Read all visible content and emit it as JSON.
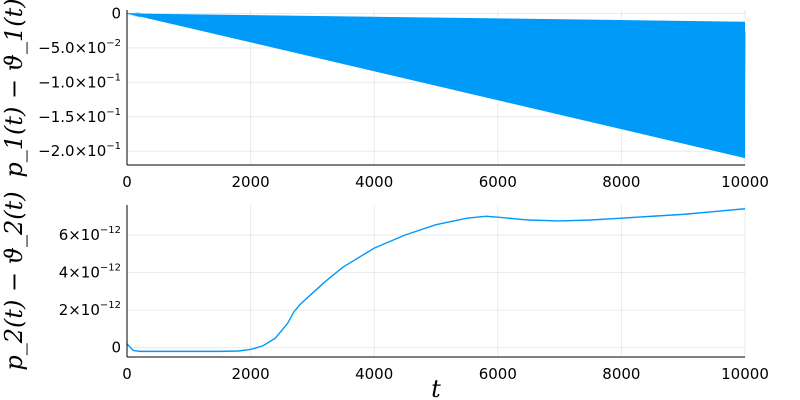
{
  "chart_data": [
    {
      "type": "line",
      "ylabel": "p_1(t) − ϑ_1(t)",
      "xlabel": "",
      "xlim": [
        0,
        10000
      ],
      "ylim": [
        -0.22,
        0.005
      ],
      "x_ticks": [
        0,
        2000,
        4000,
        6000,
        8000,
        10000
      ],
      "x_tick_labels": [
        "0",
        "2000",
        "4000",
        "6000",
        "8000",
        "10000"
      ],
      "y_ticks": [
        0,
        -0.05,
        -0.1,
        -0.15,
        -0.2
      ],
      "y_tick_labels": [
        {
          "mant": "0",
          "exp": ""
        },
        {
          "mant": "−5.0×10",
          "exp": "−2"
        },
        {
          "mant": "−1.0×10",
          "exp": "−1"
        },
        {
          "mant": "−1.5×10",
          "exp": "−1"
        },
        {
          "mant": "−2.0×10",
          "exp": "−1"
        }
      ],
      "grid": true,
      "color": "#009af9",
      "series": [
        {
          "kind": "oscillation-band",
          "x": [
            0,
            10000
          ],
          "upper": [
            0,
            -0.012
          ],
          "lower": [
            0,
            -0.21
          ]
        }
      ]
    },
    {
      "type": "line",
      "ylabel": "p_2(t) − ϑ_2(t)",
      "xlabel": "t",
      "xlim": [
        0,
        10000
      ],
      "ylim": [
        -5e-13,
        7.6e-12
      ],
      "x_ticks": [
        0,
        2000,
        4000,
        6000,
        8000,
        10000
      ],
      "x_tick_labels": [
        "0",
        "2000",
        "4000",
        "6000",
        "8000",
        "10000"
      ],
      "y_ticks": [
        0,
        2e-12,
        4e-12,
        6e-12
      ],
      "y_tick_labels": [
        {
          "mant": "0",
          "exp": ""
        },
        {
          "mant": "2×10",
          "exp": "−12"
        },
        {
          "mant": "4×10",
          "exp": "−12"
        },
        {
          "mant": "6×10",
          "exp": "−12"
        }
      ],
      "grid": true,
      "color": "#009af9",
      "series": [
        {
          "x": [
            0,
            100,
            200,
            500,
            1000,
            1500,
            1800,
            2000,
            2200,
            2400,
            2600,
            2700,
            2800,
            3000,
            3200,
            3500,
            4000,
            4500,
            5000,
            5500,
            5800,
            6000,
            6500,
            7000,
            7500,
            8000,
            8500,
            9000,
            9500,
            10000
          ],
          "y": [
            2e-13,
            -1.5e-13,
            -2e-13,
            -2e-13,
            -2e-13,
            -2e-13,
            -1.8e-13,
            -1e-13,
            1e-13,
            5e-13,
            1.3e-12,
            1.9e-12,
            2.3e-12,
            2.9e-12,
            3.5e-12,
            4.3e-12,
            5.3e-12,
            6e-12,
            6.55e-12,
            6.9e-12,
            7e-12,
            6.95e-12,
            6.8e-12,
            6.75e-12,
            6.8e-12,
            6.9e-12,
            7e-12,
            7.1e-12,
            7.25e-12,
            7.4e-12
          ]
        }
      ]
    }
  ]
}
